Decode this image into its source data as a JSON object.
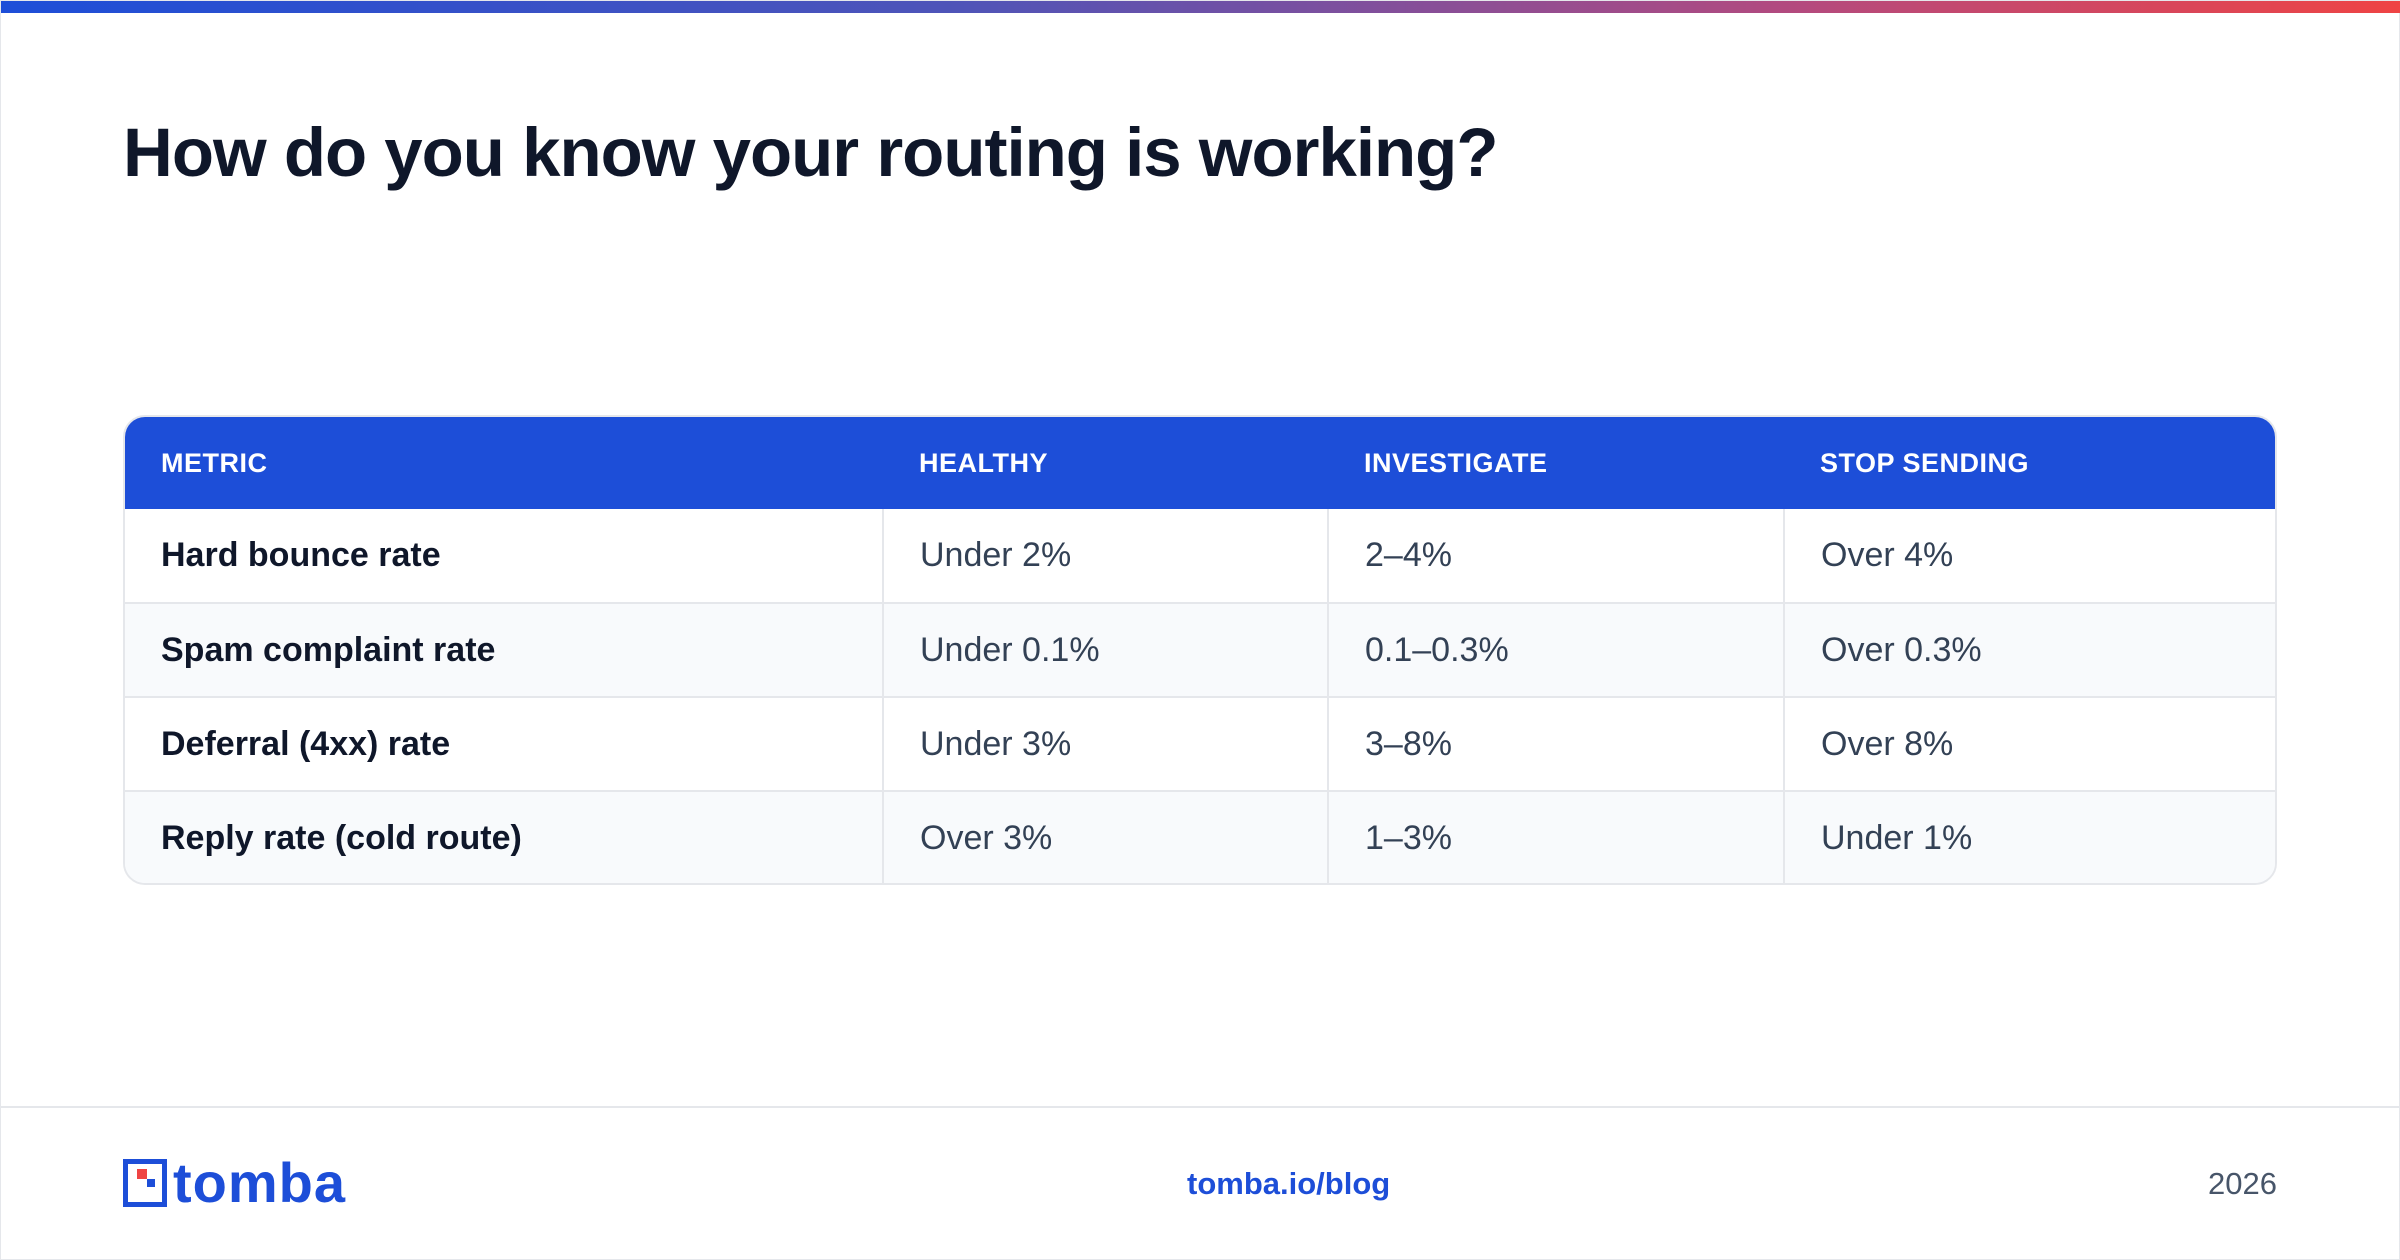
{
  "title": "How do you know your routing is working?",
  "table": {
    "headers": [
      "METRIC",
      "HEALTHY",
      "INVESTIGATE",
      "STOP SENDING"
    ],
    "rows": [
      [
        "Hard bounce rate",
        "Under 2%",
        "2–4%",
        "Over 4%"
      ],
      [
        "Spam complaint rate",
        "Under 0.1%",
        "0.1–0.3%",
        "Over 0.3%"
      ],
      [
        "Deferral (4xx) rate",
        "Under 3%",
        "3–8%",
        "Over 8%"
      ],
      [
        "Reply rate (cold route)",
        "Over 3%",
        "1–3%",
        "Under 1%"
      ]
    ]
  },
  "footer": {
    "logo_text": "tomba",
    "link": "tomba.io/blog",
    "year": "2026"
  },
  "colors": {
    "brand_blue": "#1d4ed8",
    "logo_red": "#ef4444",
    "title_text": "#0f172a"
  },
  "icons": {
    "logo": "tomba-logo-icon"
  }
}
